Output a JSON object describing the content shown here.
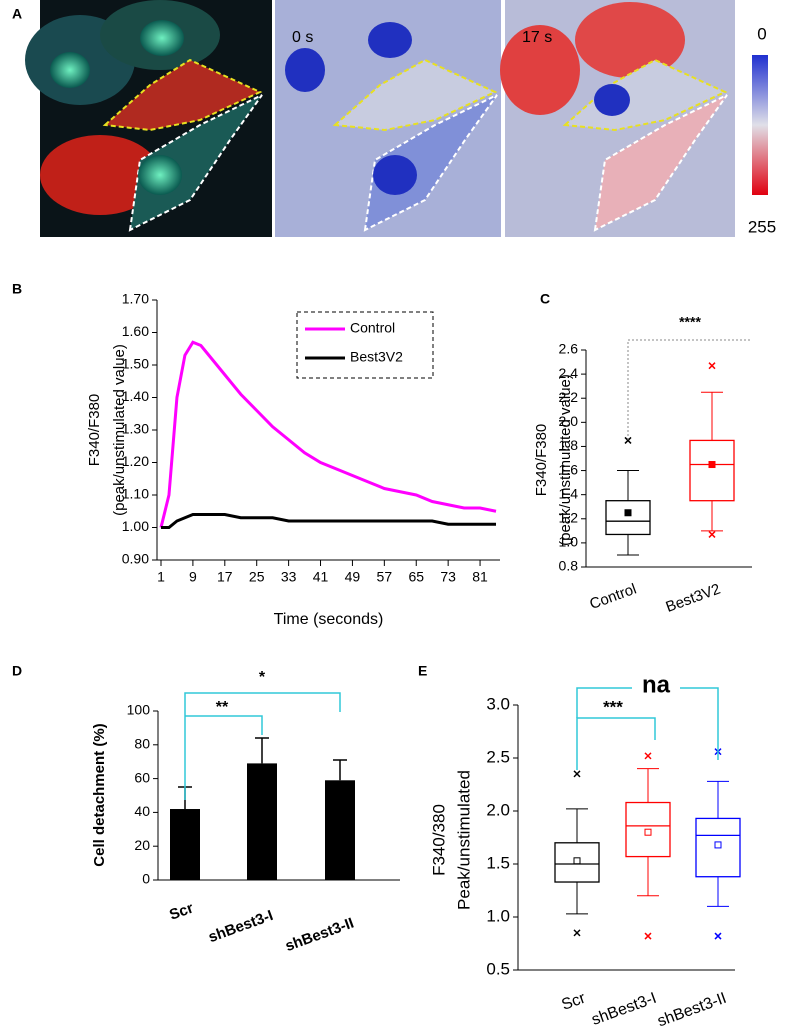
{
  "panel_a": {
    "panel": "A",
    "frame_labels": [
      "0 s",
      "17 s"
    ],
    "colorbar_labels": [
      "0",
      "255"
    ]
  },
  "chart_data": [
    {
      "type": "line",
      "panel": "B",
      "x": [
        1,
        3,
        5,
        7,
        9,
        11,
        13,
        17,
        21,
        25,
        29,
        33,
        37,
        41,
        45,
        49,
        53,
        57,
        61,
        65,
        69,
        73,
        77,
        81,
        85
      ],
      "xlim": [
        0,
        86
      ],
      "xticks": [
        1,
        9,
        17,
        25,
        33,
        41,
        49,
        57,
        65,
        73,
        81
      ],
      "ylim": [
        0.9,
        1.7
      ],
      "yticks": [
        {
          "value": 0.9,
          "label": "0.90"
        },
        {
          "value": 1.0,
          "label": "1.00"
        },
        {
          "value": 1.1,
          "label": "1.10"
        },
        {
          "value": 1.2,
          "label": "1.20"
        },
        {
          "value": 1.3,
          "label": "1.30"
        },
        {
          "value": 1.4,
          "label": "1.40"
        },
        {
          "value": 1.5,
          "label": "1.50"
        },
        {
          "value": 1.6,
          "label": "1.60"
        },
        {
          "value": 1.7,
          "label": "1.70"
        }
      ],
      "x_label": "Time (seconds)",
      "y_label": [
        "F340/F380",
        "(peak/unstimulated value)"
      ],
      "legend": "upper right",
      "series": [
        {
          "name": "Control",
          "color": "#ff00ff",
          "values": [
            1.0,
            1.1,
            1.4,
            1.53,
            1.57,
            1.56,
            1.53,
            1.47,
            1.41,
            1.36,
            1.31,
            1.27,
            1.23,
            1.2,
            1.18,
            1.16,
            1.14,
            1.12,
            1.11,
            1.1,
            1.08,
            1.07,
            1.06,
            1.06,
            1.05
          ]
        },
        {
          "name": "Best3V2",
          "color": "#000000",
          "values": [
            1.0,
            1.0,
            1.02,
            1.03,
            1.04,
            1.04,
            1.04,
            1.04,
            1.03,
            1.03,
            1.03,
            1.02,
            1.02,
            1.02,
            1.02,
            1.02,
            1.02,
            1.02,
            1.02,
            1.02,
            1.02,
            1.01,
            1.01,
            1.01,
            1.01
          ]
        }
      ]
    },
    {
      "type": "box",
      "panel": "C",
      "categories": [
        "Control",
        "Best3V2"
      ],
      "ylim": [
        0.8,
        2.6
      ],
      "yticks": [
        0.8,
        {
          "value": 1.0,
          "label": "1.0"
        },
        1.2,
        1.4,
        1.6,
        1.8,
        {
          "value": 2.0,
          "label": "2.0"
        },
        2.2,
        2.4,
        2.6
      ],
      "y_label": [
        "F340/F380",
        "(peak/unstimulated value)"
      ],
      "annotations": [
        "****"
      ],
      "boxes": [
        {
          "color": "#000000",
          "low": 0.9,
          "q1": 1.07,
          "median": 1.18,
          "q3": 1.35,
          "high": 1.6,
          "mean": 1.25,
          "outliers": [
            1.85
          ]
        },
        {
          "color": "#ff0000",
          "low": 1.1,
          "q1": 1.35,
          "median": 1.65,
          "q3": 1.85,
          "high": 2.25,
          "mean": 1.65,
          "outliers": [
            2.47,
            1.07
          ]
        }
      ]
    },
    {
      "type": "bar",
      "panel": "D",
      "categories": [
        "Scr",
        "shBest3-I",
        "shBest3-II"
      ],
      "values": [
        42,
        69,
        59
      ],
      "errors": [
        13,
        15,
        12
      ],
      "color": "#000000",
      "ylim": [
        0,
        100
      ],
      "yticks": [
        0,
        20,
        40,
        60,
        80,
        100
      ],
      "y_label": [
        "Cell detachment (%)"
      ],
      "annotations": [
        "**",
        "*"
      ]
    },
    {
      "type": "box",
      "panel": "E",
      "categories": [
        "Scr",
        "shBest3-I",
        "shBest3-II"
      ],
      "ylim": [
        0.5,
        3.0
      ],
      "yticks": [
        0.5,
        {
          "value": 1.0,
          "label": "1.0"
        },
        1.5,
        {
          "value": 2.0,
          "label": "2.0"
        },
        2.5,
        {
          "value": 3.0,
          "label": "3.0"
        }
      ],
      "y_label": [
        "F340/380",
        "Peak/unstimulated"
      ],
      "annotations": [
        "***",
        "na"
      ],
      "boxes": [
        {
          "color": "#000000",
          "low": 1.03,
          "q1": 1.33,
          "median": 1.5,
          "q3": 1.7,
          "high": 2.02,
          "mean": 1.53,
          "outliers": [
            2.35,
            0.85
          ]
        },
        {
          "color": "#ff0000",
          "low": 1.2,
          "q1": 1.57,
          "median": 1.86,
          "q3": 2.08,
          "high": 2.4,
          "mean": 1.8,
          "outliers": [
            2.52,
            0.82
          ]
        },
        {
          "color": "#0000ff",
          "low": 1.1,
          "q1": 1.38,
          "median": 1.77,
          "q3": 1.93,
          "high": 2.28,
          "mean": 1.68,
          "outliers": [
            2.56,
            0.82
          ]
        }
      ]
    }
  ]
}
